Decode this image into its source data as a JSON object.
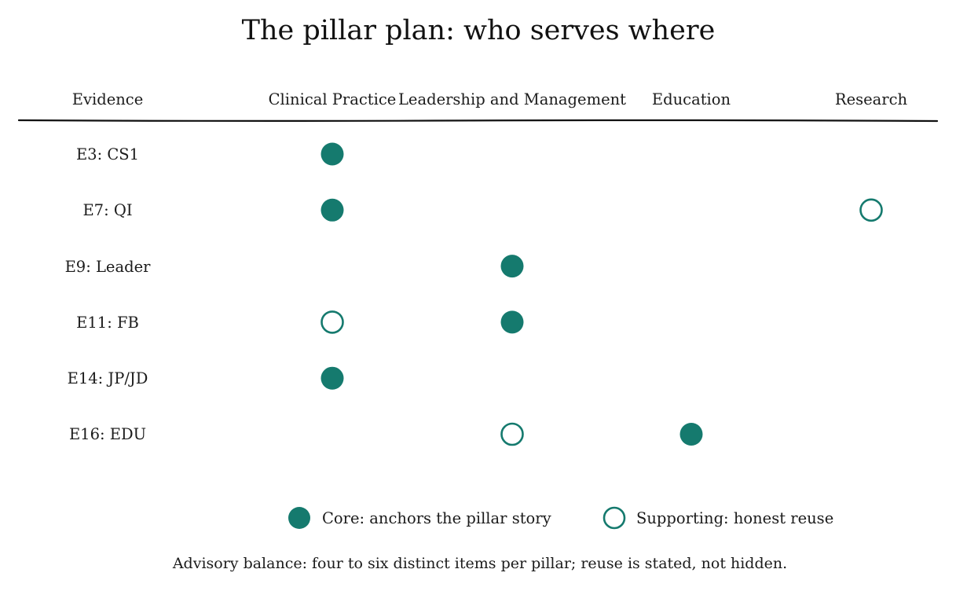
{
  "title": "The pillar plan: who serves where",
  "header": {
    "evidence_label": "Evidence",
    "pillars": [
      "Clinical Practice",
      "Leadership and Management",
      "Education",
      "Research"
    ]
  },
  "rows": [
    {
      "label": "E3: CS1",
      "cells": [
        "core",
        "",
        "",
        ""
      ]
    },
    {
      "label": "E7: QI",
      "cells": [
        "core",
        "",
        "",
        "supporting"
      ]
    },
    {
      "label": "E9: Leader",
      "cells": [
        "",
        "core",
        "",
        ""
      ]
    },
    {
      "label": "E11: FB",
      "cells": [
        "supporting",
        "core",
        "",
        ""
      ]
    },
    {
      "label": "E14: JP/JD",
      "cells": [
        "core",
        "",
        "",
        ""
      ]
    },
    {
      "label": "E16: EDU",
      "cells": [
        "",
        "supporting",
        "core",
        ""
      ]
    }
  ],
  "legend": {
    "core_label": "Core: anchors the pillar story",
    "supporting_label": "Supporting: honest reuse"
  },
  "footnote": "Advisory balance: four to six distinct items per pillar; reuse is stated, not hidden.",
  "colors": {
    "accent": "#157a6e",
    "text": "#1b1b1b",
    "rule": "#111111"
  }
}
